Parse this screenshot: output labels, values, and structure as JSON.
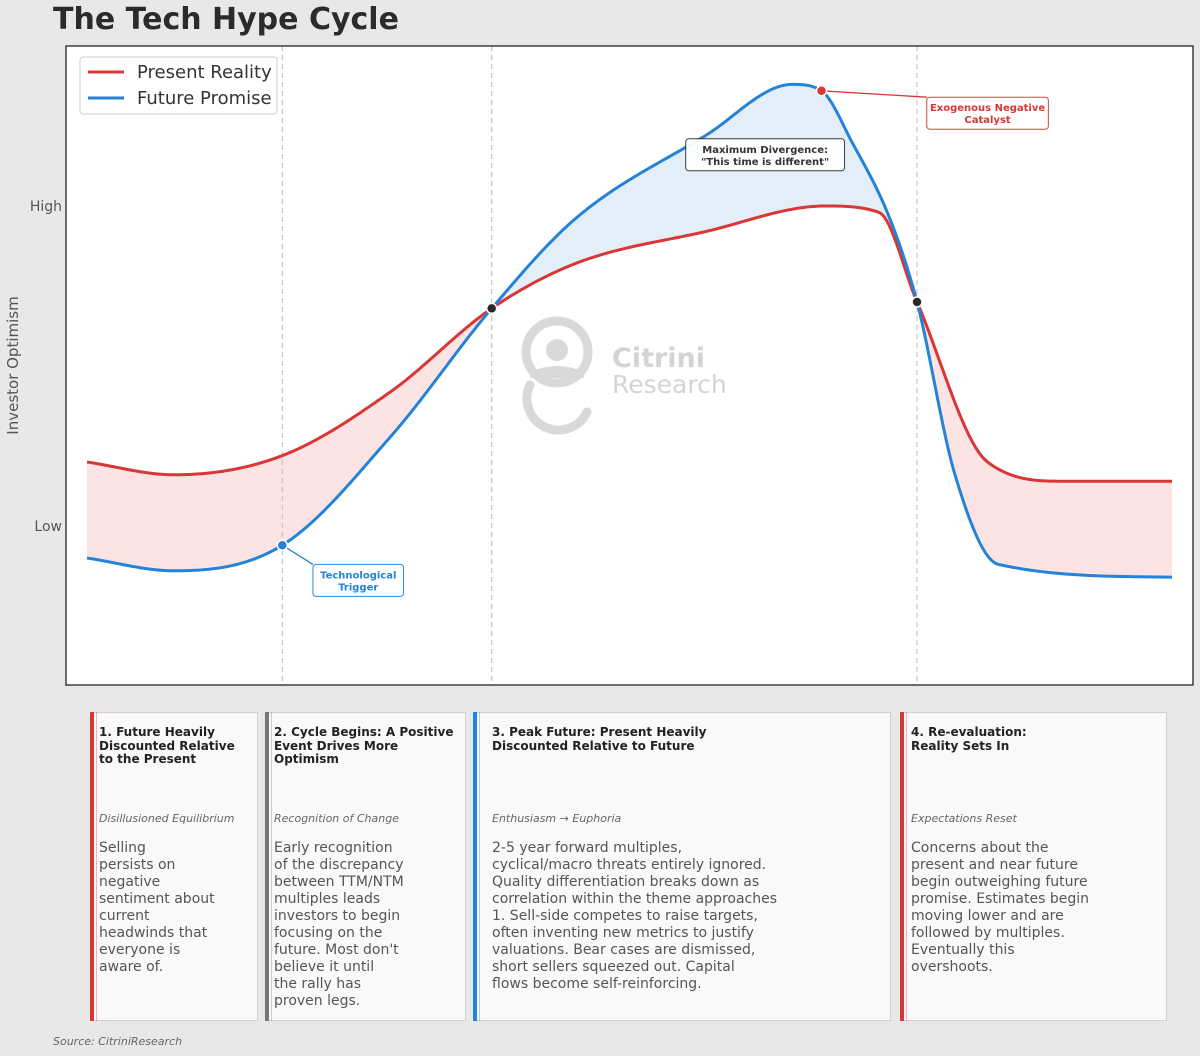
{
  "chart_data": {
    "type": "line",
    "title": "The Tech Hype Cycle",
    "ylabel": "Investor Optimism",
    "xlabel": "",
    "xlim": [
      0,
      100
    ],
    "ylim": [
      0,
      100
    ],
    "y_ticks": [
      {
        "value": 25,
        "label": "Low"
      },
      {
        "value": 75,
        "label": "High"
      }
    ],
    "phase_dividers": [
      18,
      37.3,
      76.5
    ],
    "legend": {
      "placement": "top-left"
    },
    "series": [
      {
        "name": "Present Reality",
        "color": "#d93636",
        "x": [
          0,
          8,
          18,
          28,
          37.3,
          45,
          57,
          68,
          73,
          76.5,
          83,
          90,
          100
        ],
        "y": [
          35,
          33,
          36,
          46,
          59,
          66,
          71,
          75,
          74,
          60,
          35,
          32,
          32
        ]
      },
      {
        "name": "Future Promise",
        "color": "#2383d8",
        "x": [
          0,
          8,
          18,
          28,
          37.3,
          45,
          57,
          65,
          67.7,
          70.5,
          74,
          76.5,
          80,
          84,
          100
        ],
        "y": [
          20,
          18,
          22,
          39,
          59,
          73,
          86,
          94,
          93,
          85,
          73,
          60,
          33,
          19,
          17
        ]
      }
    ],
    "markers": [
      {
        "x": 18,
        "y": 22,
        "color": "#2383d8"
      },
      {
        "x": 37.3,
        "y": 59,
        "color": "#2a2a2a"
      },
      {
        "x": 76.5,
        "y": 60,
        "color": "#2a2a2a"
      },
      {
        "x": 67.7,
        "y": 93,
        "color": "#d93636"
      }
    ],
    "annotations": [
      {
        "text": "Technological\nTrigger",
        "x": 25,
        "y": 16.5,
        "color": "#2383d8",
        "arrow_to": [
          18,
          22
        ]
      },
      {
        "text": "Maximum Divergence:\n\"This time is different\"",
        "x": 62.5,
        "y": 83,
        "color": "#333333"
      },
      {
        "text": "Exogenous Negative\nCatalyst",
        "x": 83,
        "y": 89.5,
        "color": "#d93636",
        "arrow_to": [
          67.7,
          93
        ]
      }
    ],
    "fill_colors": {
      "red": "#fde4e4",
      "blue": "#e3eef9"
    }
  },
  "watermark": {
    "line1": "Citrini",
    "line2": "Research"
  },
  "phases": [
    {
      "title": "1. Future Heavily\nDiscounted Relative\nto the Present",
      "subtitle": "Disillusioned Equilibrium",
      "body": "Selling\npersists on\nnegative\nsentiment about\ncurrent\nheadwinds that\neveryone is\naware of.",
      "color": "#d93636"
    },
    {
      "title": "2. Cycle Begins: A Positive\nEvent Drives More Optimism",
      "subtitle": "Recognition of Change",
      "body": "Early recognition\nof the discrepancy\nbetween TTM/NTM\nmultiples leads\ninvestors to begin\nfocusing on the\nfuture. Most don't\nbelieve it until\nthe rally has\nproven legs.",
      "color": "#777777"
    },
    {
      "title": "3. Peak Future: Present Heavily\nDiscounted Relative to Future",
      "subtitle": "Enthusiasm → Euphoria",
      "body": "2-5 year forward multiples,\ncyclical/macro threats entirely ignored.\nQuality differentiation breaks down as\ncorrelation within the theme approaches\n1. Sell-side competes to raise targets,\noften inventing new metrics to justify\nvaluations. Bear cases are dismissed,\nshort sellers squeezed out. Capital\nflows become self-reinforcing.",
      "color": "#2383d8"
    },
    {
      "title": "4. Re-evaluation:\nReality Sets In",
      "subtitle": "Expectations Reset",
      "body": "Concerns about the\npresent and near future\nbegin outweighing future\npromise. Estimates begin\nmoving lower and are\nfollowed by multiples.\nEventually this\novershoots.",
      "color": "#d93636"
    }
  ],
  "source": "Source: CitriniResearch"
}
